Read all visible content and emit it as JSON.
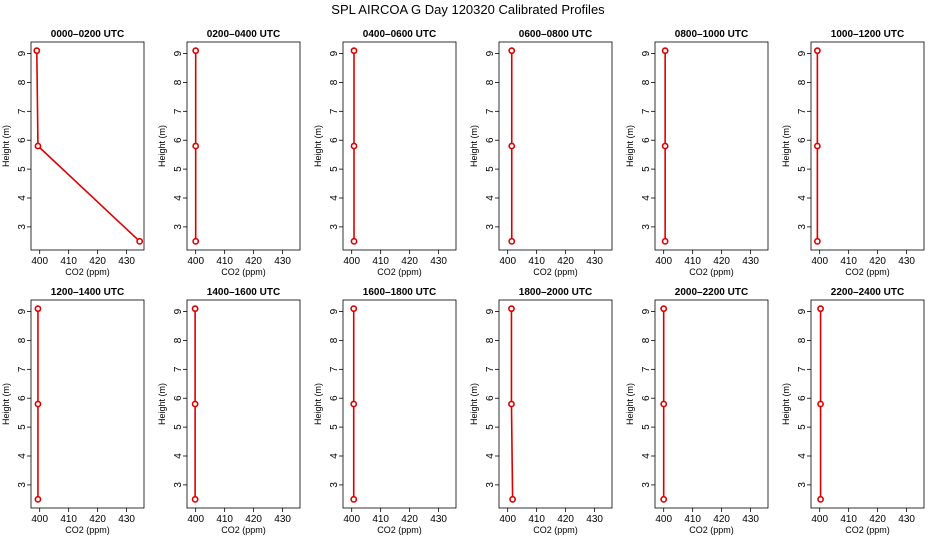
{
  "title": "SPL AIRCOA G  Day 120320  Calibrated Profiles",
  "chart_data": {
    "type": "line",
    "xlabel": "CO2 (ppm)",
    "ylabel": "Height (m)",
    "xlim": [
      397,
      436
    ],
    "ylim": [
      2.2,
      9.4
    ],
    "xticks": [
      "400",
      "410",
      "420",
      "430"
    ],
    "yticks": [
      "3",
      "4",
      "5",
      "6",
      "7",
      "8",
      "9"
    ],
    "heights": [
      2.5,
      5.8,
      9.1
    ],
    "line_color": "#dd0000",
    "panels": [
      {
        "title": "0000–0200 UTC",
        "co2": [
          434.5,
          399.4,
          399.0
        ]
      },
      {
        "title": "0200–0400 UTC",
        "co2": [
          400.0,
          400.0,
          400.0
        ]
      },
      {
        "title": "0400–0600 UTC",
        "co2": [
          400.8,
          400.8,
          400.8
        ]
      },
      {
        "title": "0600–0800 UTC",
        "co2": [
          401.4,
          401.4,
          401.4
        ]
      },
      {
        "title": "0800–1000 UTC",
        "co2": [
          400.5,
          400.5,
          400.5
        ]
      },
      {
        "title": "1000–1200 UTC",
        "co2": [
          399.2,
          399.2,
          399.2
        ]
      },
      {
        "title": "1200–1400 UTC",
        "co2": [
          399.4,
          399.4,
          399.4
        ]
      },
      {
        "title": "1400–1600 UTC",
        "co2": [
          399.8,
          399.8,
          399.8
        ]
      },
      {
        "title": "1600–1800 UTC",
        "co2": [
          400.7,
          400.7,
          400.7
        ]
      },
      {
        "title": "1800–2000 UTC",
        "co2": [
          401.7,
          401.3,
          401.3
        ]
      },
      {
        "title": "2000–2200 UTC",
        "co2": [
          400.0,
          400.0,
          400.0
        ]
      },
      {
        "title": "2200–2400 UTC",
        "co2": [
          400.3,
          400.3,
          400.3
        ]
      }
    ]
  }
}
